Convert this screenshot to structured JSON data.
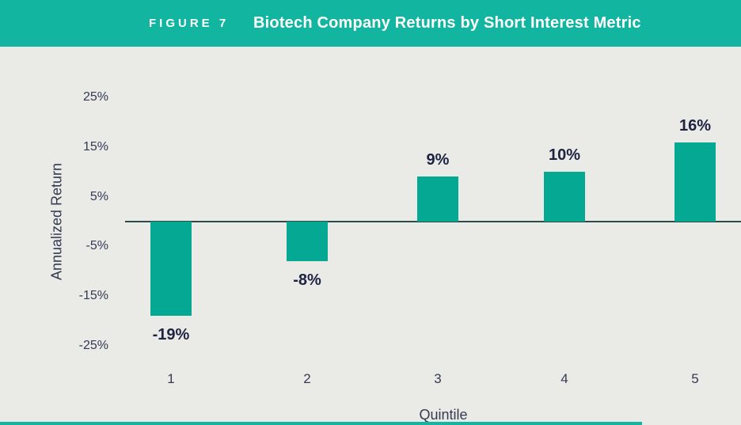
{
  "header": {
    "figure_label": "FIGURE 7",
    "figure_title": "Biotech Company Returns by Short Interest Metric"
  },
  "chart_data": {
    "type": "bar",
    "title": "Biotech Company Returns by Short Interest Metric",
    "categories": [
      "1",
      "2",
      "3",
      "4",
      "5"
    ],
    "values": [
      -19,
      -8,
      9,
      10,
      16
    ],
    "value_labels": [
      "-19%",
      "-8%",
      "9%",
      "10%",
      "16%"
    ],
    "xlabel": "Quintile",
    "ylabel": "Annualized Return",
    "yticks": [
      25,
      15,
      5,
      -5,
      -15,
      -25
    ],
    "ytick_labels": [
      "25%",
      "15%",
      "5%",
      "-5%",
      "-15%",
      "-25%"
    ],
    "ylim": [
      -27,
      27
    ],
    "grid": false,
    "legend": "none",
    "colors": {
      "header_teal": "#12B5A0",
      "bar_teal": "#05A892",
      "background_gray": "#EAEAE7",
      "label_navy": "#1E2342",
      "tick_slate": "#343A52",
      "zero_line": "#2C4C48",
      "header_text": "#FFFFFF"
    }
  }
}
